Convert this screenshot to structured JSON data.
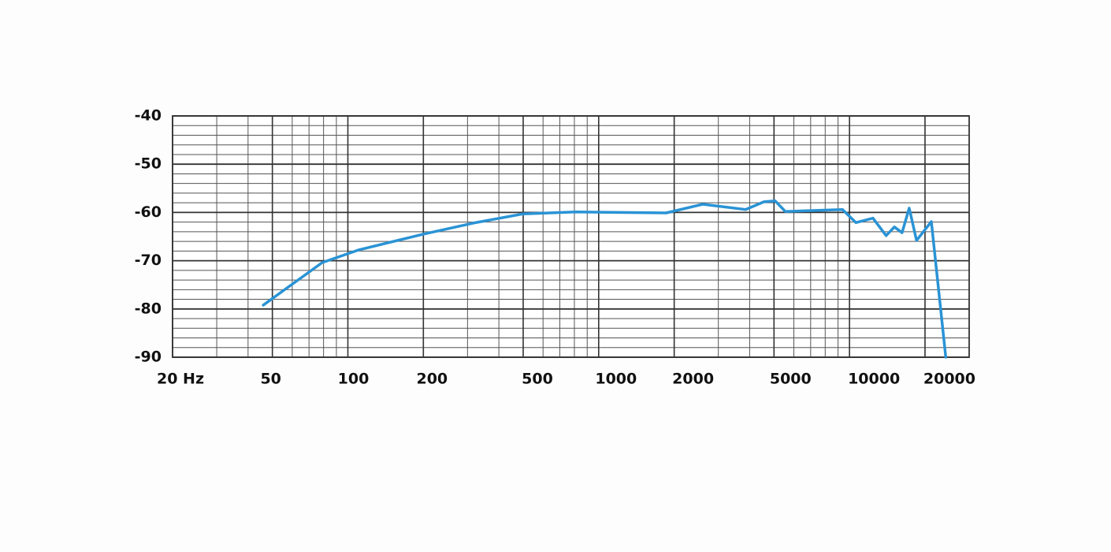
{
  "chart_data": {
    "type": "line",
    "x": [
      46,
      79,
      110,
      200,
      316,
      500,
      810,
      1860,
      2600,
      3850,
      4560,
      5050,
      5550,
      9380,
      10600,
      12400,
      14000,
      15100,
      16200,
      17300,
      18500,
      21200,
      24200
    ],
    "series": [
      {
        "color": "#2a93d5",
        "values": [
          -79.2,
          -70.4,
          -67.8,
          -64.5,
          -62.2,
          -60.3,
          -59.9,
          -60.1,
          -58.3,
          -59.4,
          -57.8,
          -57.6,
          -59.8,
          -59.4,
          -62.1,
          -61.2,
          -64.8,
          -63.0,
          -64.2,
          -59.1,
          -65.8,
          -61.9,
          -90
        ]
      }
    ],
    "xscale": "log",
    "xlim": [
      20,
      30000
    ],
    "xticks": [
      {
        "value": 20,
        "label": "20 Hz"
      },
      50,
      100,
      200,
      500,
      1000,
      2000,
      5000,
      10000,
      20000
    ],
    "ylim": [
      -90,
      -40
    ],
    "yticks": [
      -40,
      -50,
      -60,
      -70,
      -80,
      -90
    ],
    "grid": true
  }
}
